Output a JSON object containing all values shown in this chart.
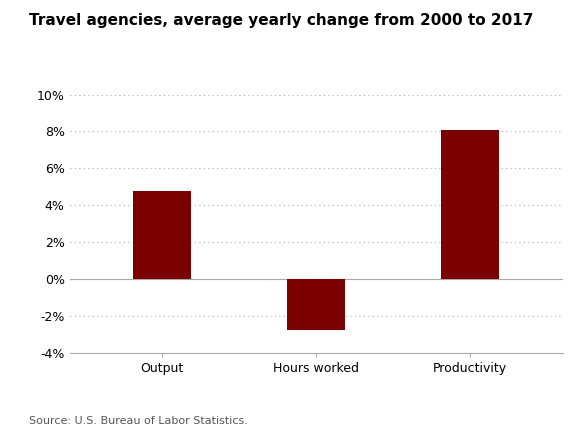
{
  "title": "Travel agencies, average yearly change from 2000 to 2017",
  "categories": [
    "Output",
    "Hours worked",
    "Productivity"
  ],
  "values": [
    4.75,
    -2.75,
    8.1
  ],
  "bar_color": "#7B0000",
  "ylim": [
    -4,
    10
  ],
  "yticks": [
    -4,
    -2,
    0,
    2,
    4,
    6,
    8,
    10
  ],
  "source_text": "Source: U.S. Bureau of Labor Statistics.",
  "background_color": "#FFFFFF",
  "grid_color": "#AAAACC",
  "bar_width": 0.38,
  "title_fontsize": 11,
  "tick_fontsize": 9,
  "source_fontsize": 8
}
